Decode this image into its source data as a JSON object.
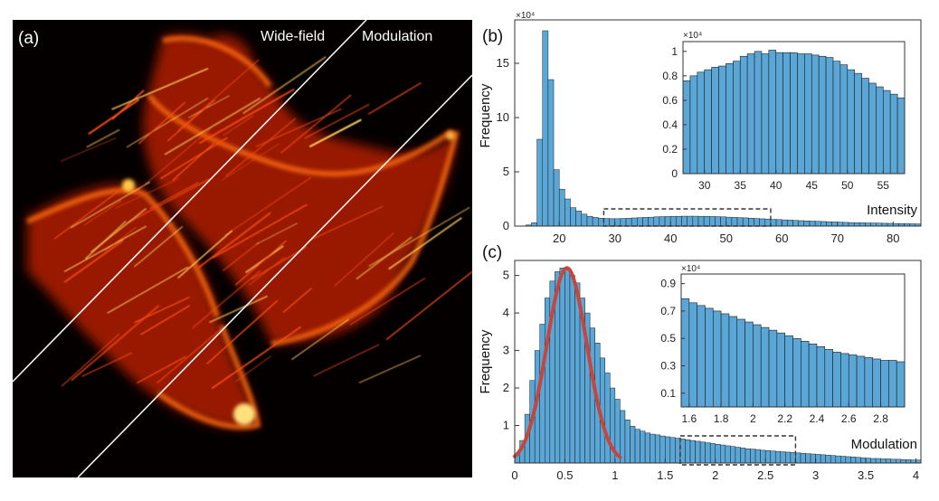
{
  "chart_data": [
    {
      "panel": "(a)",
      "type": "image",
      "region_labels": [
        "Wide-field",
        "Modulation"
      ]
    },
    {
      "panel": "(b)",
      "type": "bar",
      "xlabel": "Intensity",
      "ylabel": "Frequency",
      "exponent_label": "×10⁴",
      "xlim": [
        12,
        85
      ],
      "ylim": [
        0,
        19
      ],
      "xticks": [
        20,
        30,
        40,
        50,
        60,
        70,
        80
      ],
      "yticks": [
        0,
        5,
        10,
        15
      ],
      "bin_start": 14,
      "bin_width": 1,
      "values": [
        0.1,
        0.3,
        8.0,
        18.0,
        13.5,
        5.2,
        3.4,
        2.5,
        1.7,
        1.4,
        1.1,
        0.9,
        0.8,
        0.72,
        0.7,
        0.68,
        0.68,
        0.7,
        0.72,
        0.75,
        0.78,
        0.8,
        0.82,
        0.85,
        0.87,
        0.88,
        0.9,
        0.9,
        0.91,
        0.91,
        0.91,
        0.9,
        0.9,
        0.88,
        0.87,
        0.85,
        0.82,
        0.8,
        0.78,
        0.76,
        0.73,
        0.7,
        0.67,
        0.65,
        0.62,
        0.6,
        0.57,
        0.55,
        0.52,
        0.5,
        0.48,
        0.46,
        0.44,
        0.42,
        0.4,
        0.38,
        0.36,
        0.34,
        0.32,
        0.31,
        0.3,
        0.29,
        0.28,
        0.27,
        0.26,
        0.25,
        0.24,
        0.23,
        0.22,
        0.21,
        0.2
      ],
      "zoom_box_x": [
        28,
        58
      ],
      "inset": {
        "exponent_label": "×10⁴",
        "xlim": [
          27,
          58
        ],
        "ylim": [
          0,
          1.08
        ],
        "xticks": [
          30,
          35,
          40,
          45,
          50,
          55
        ],
        "yticks": [
          0,
          0.2,
          0.4,
          0.6,
          0.8,
          1
        ],
        "ytick_labels": [
          "0",
          "0.2",
          "0.4",
          "0.6",
          "0.8",
          "1"
        ],
        "bin_start": 27,
        "bin_width": 1,
        "values": [
          0.76,
          0.8,
          0.83,
          0.85,
          0.87,
          0.88,
          0.9,
          0.92,
          0.96,
          0.98,
          1.0,
          0.98,
          1.01,
          0.99,
          0.99,
          0.99,
          0.98,
          0.98,
          0.97,
          0.96,
          0.95,
          0.92,
          0.89,
          0.85,
          0.82,
          0.78,
          0.74,
          0.71,
          0.68,
          0.65,
          0.62
        ]
      }
    },
    {
      "panel": "(c)",
      "type": "bar",
      "xlabel": "Modulation",
      "ylabel": "Frequency",
      "exponent_label": "",
      "xlim": [
        0,
        4.05
      ],
      "ylim": [
        0,
        5.4
      ],
      "xticks": [
        0,
        0.5,
        1,
        1.5,
        2,
        2.5,
        3,
        3.5,
        4
      ],
      "yticks": [
        1,
        2,
        3,
        4,
        5
      ],
      "bin_start": 0,
      "bin_width": 0.05,
      "values": [
        0.2,
        0.6,
        1.3,
        2.2,
        3.0,
        3.7,
        4.4,
        4.85,
        5.1,
        5.2,
        5.15,
        5.0,
        4.8,
        4.4,
        4.0,
        3.6,
        3.2,
        2.8,
        2.4,
        2.0,
        1.7,
        1.4,
        1.15,
        0.98,
        0.9,
        0.85,
        0.8,
        0.77,
        0.75,
        0.72,
        0.7,
        0.68,
        0.66,
        0.64,
        0.62,
        0.6,
        0.58,
        0.56,
        0.54,
        0.52,
        0.5,
        0.48,
        0.46,
        0.44,
        0.42,
        0.4,
        0.38,
        0.37,
        0.36,
        0.34,
        0.33,
        0.32,
        0.31,
        0.3,
        0.29,
        0.28,
        0.27,
        0.26,
        0.25,
        0.24,
        0.23,
        0.22,
        0.21,
        0.2,
        0.19,
        0.18,
        0.17,
        0.16,
        0.15,
        0.14,
        0.13,
        0.12,
        0.12,
        0.11,
        0.11,
        0.1,
        0.1,
        0.09,
        0.09,
        0.08,
        0.08
      ],
      "fit_curve": {
        "type": "gaussian",
        "amplitude": 5.2,
        "center": 0.52,
        "sigma": 0.2,
        "x_range": [
          0,
          1.05
        ],
        "color": "#c8453c"
      },
      "zoom_box_x": [
        1.65,
        2.8
      ],
      "inset": {
        "exponent_label": "×10⁴",
        "xlim": [
          1.55,
          2.95
        ],
        "ylim": [
          0,
          0.97
        ],
        "xticks": [
          1.6,
          1.8,
          2,
          2.2,
          2.4,
          2.6,
          2.8
        ],
        "xtick_labels": [
          "1.6",
          "1.8",
          "2",
          "2.2",
          "2.4",
          "2.6",
          "2.8"
        ],
        "yticks": [
          0.1,
          0.3,
          0.5,
          0.7,
          0.9
        ],
        "bin_start": 1.55,
        "bin_width": 0.05,
        "values": [
          0.79,
          0.76,
          0.74,
          0.72,
          0.7,
          0.68,
          0.66,
          0.64,
          0.62,
          0.6,
          0.58,
          0.56,
          0.54,
          0.52,
          0.5,
          0.48,
          0.46,
          0.44,
          0.42,
          0.4,
          0.39,
          0.38,
          0.37,
          0.36,
          0.35,
          0.34,
          0.34,
          0.33
        ]
      }
    }
  ],
  "colors": {
    "bar_fill": "#5aa6d6",
    "bar_edge": "#1e1e1e",
    "fit": "#c8453c",
    "image_bg": "#050000"
  }
}
